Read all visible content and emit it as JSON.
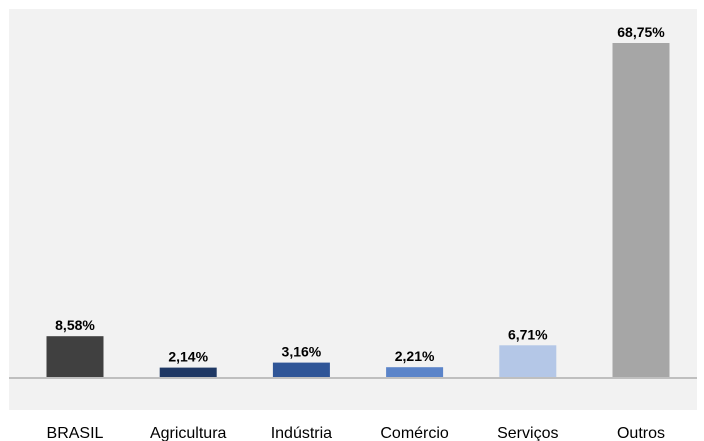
{
  "chart_data": {
    "type": "bar",
    "title": "",
    "xlabel": "",
    "ylabel": "",
    "categories": [
      "BRASIL",
      "Agricultura",
      "Indústria",
      "Comércio",
      "Serviços",
      "Outros"
    ],
    "values": [
      8.58,
      2.14,
      3.16,
      2.21,
      6.71,
      68.75
    ],
    "data_labels": [
      "8,58%",
      "2,14%",
      "3,16%",
      "2,21%",
      "6,71%",
      "68,75%"
    ],
    "colors": [
      "#404040",
      "#1f3864",
      "#2f5597",
      "#5b84c9",
      "#b4c7e7",
      "#a6a6a6"
    ],
    "ylim": [
      0,
      70
    ],
    "grid": false,
    "legend": "none",
    "plot_background": "#f2f2f2",
    "axis_color": "#bfbfbf"
  }
}
